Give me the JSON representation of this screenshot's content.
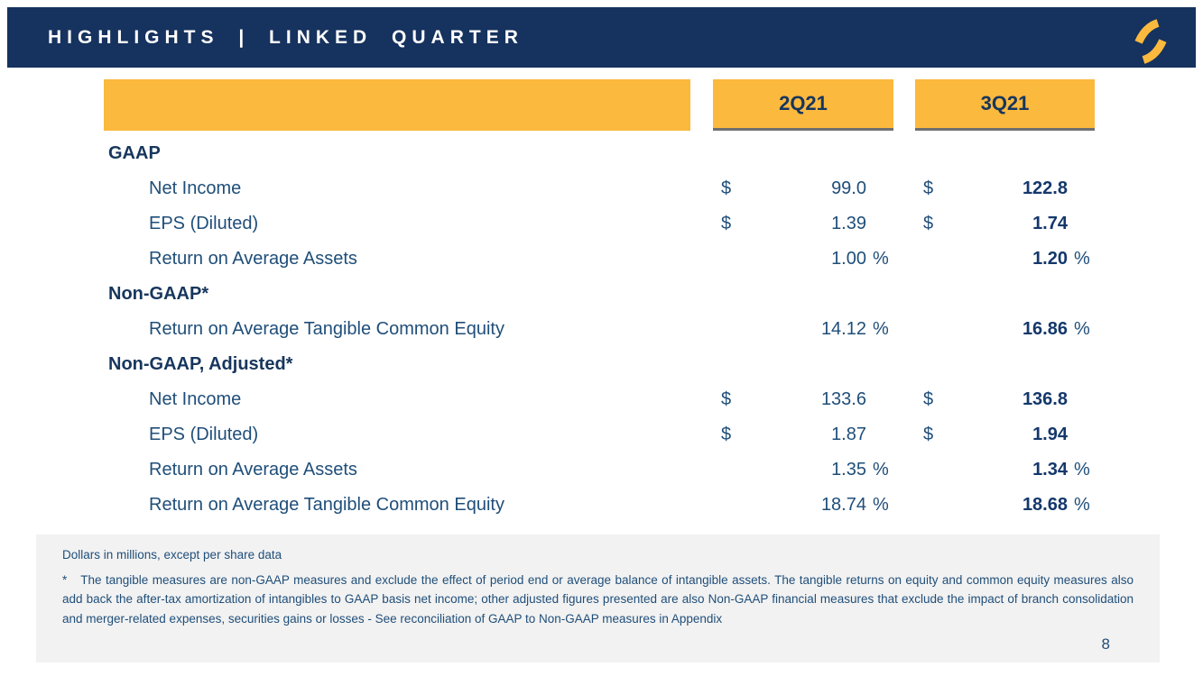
{
  "slide": {
    "title": "HIGHLIGHTS | LINKED QUARTER",
    "page_number": "8"
  },
  "colors": {
    "navy_band": "#16325E",
    "gold": "#FBB93E",
    "text_navy": "#1F4E79",
    "bold_navy": "#14386B",
    "footnote_bg": "#F2F2F2",
    "header_underline": "#6F6F6F"
  },
  "logo": {
    "icon": "gold-s-logo"
  },
  "table": {
    "columns": [
      "2Q21",
      "3Q21"
    ],
    "rows": [
      {
        "type": "section",
        "label": "GAAP"
      },
      {
        "type": "item",
        "label": "Net Income",
        "q1": {
          "dollar": "$",
          "value": "99.0",
          "pct": ""
        },
        "q2": {
          "dollar": "$",
          "value": "122.8",
          "pct": ""
        }
      },
      {
        "type": "item",
        "label": "EPS (Diluted)",
        "q1": {
          "dollar": "$",
          "value": "1.39",
          "pct": ""
        },
        "q2": {
          "dollar": "$",
          "value": "1.74",
          "pct": ""
        }
      },
      {
        "type": "item",
        "label": "Return on Average Assets",
        "q1": {
          "dollar": "",
          "value": "1.00",
          "pct": "%"
        },
        "q2": {
          "dollar": "",
          "value": "1.20",
          "pct": "%"
        }
      },
      {
        "type": "section",
        "label": "Non-GAAP*"
      },
      {
        "type": "item",
        "label": "Return on Average Tangible Common Equity",
        "q1": {
          "dollar": "",
          "value": "14.12",
          "pct": "%"
        },
        "q2": {
          "dollar": "",
          "value": "16.86",
          "pct": "%"
        }
      },
      {
        "type": "section",
        "label": "Non-GAAP, Adjusted*"
      },
      {
        "type": "item",
        "label": "Net Income",
        "q1": {
          "dollar": "$",
          "value": "133.6",
          "pct": ""
        },
        "q2": {
          "dollar": "$",
          "value": "136.8",
          "pct": ""
        }
      },
      {
        "type": "item",
        "label": "EPS (Diluted)",
        "q1": {
          "dollar": "$",
          "value": "1.87",
          "pct": ""
        },
        "q2": {
          "dollar": "$",
          "value": "1.94",
          "pct": ""
        }
      },
      {
        "type": "item",
        "label": "Return on Average Assets",
        "q1": {
          "dollar": "",
          "value": "1.35",
          "pct": "%"
        },
        "q2": {
          "dollar": "",
          "value": "1.34",
          "pct": "%"
        }
      },
      {
        "type": "item",
        "label": "Return on Average Tangible Common Equity",
        "q1": {
          "dollar": "",
          "value": "18.74",
          "pct": "%"
        },
        "q2": {
          "dollar": "",
          "value": "18.68",
          "pct": "%"
        }
      }
    ]
  },
  "footnotes": {
    "dollars_note": "Dollars in millions, except per share data",
    "asterisk": "*",
    "asterisk_note": "The tangible measures are non-GAAP measures and exclude the effect of period end or average balance of intangible assets. The tangible returns on equity and common equity measures also add back the after-tax amortization of intangibles to GAAP basis net income; other adjusted figures presented are also Non-GAAP financial measures that exclude the impact of branch consolidation and merger-related expenses, securities gains or losses - See reconciliation of GAAP to Non-GAAP measures in Appendix"
  }
}
